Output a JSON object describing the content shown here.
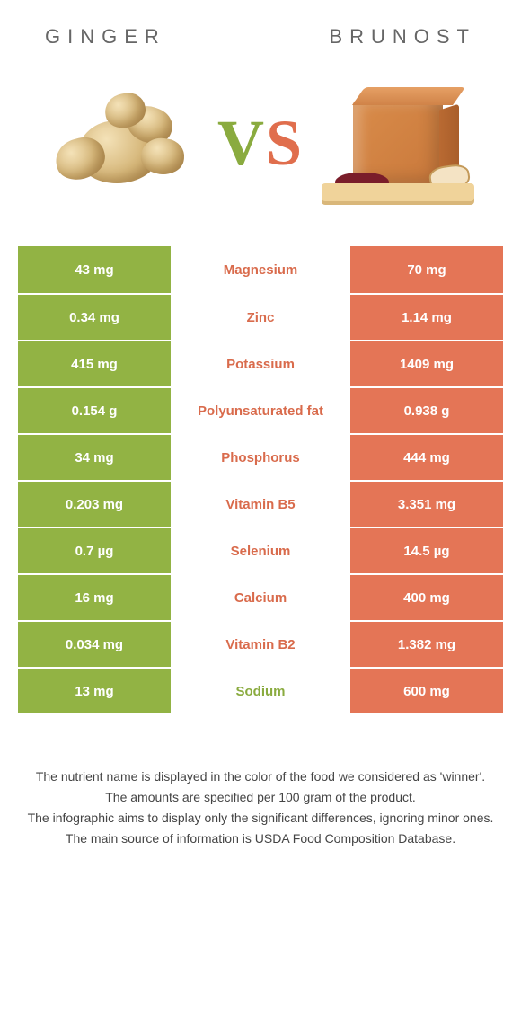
{
  "colors": {
    "left_bg": "#92b344",
    "right_bg": "#e47556",
    "left_text": "#8aab3f",
    "right_text": "#d96b4c",
    "title_text": "#666666",
    "footer_text": "#444444",
    "background": "#ffffff"
  },
  "header": {
    "left_title": "GINGER",
    "right_title": "BRUNOST",
    "vs_v": "V",
    "vs_s": "S"
  },
  "rows": [
    {
      "label": "Magnesium",
      "left": "43 mg",
      "right": "70 mg",
      "winner": "right"
    },
    {
      "label": "Zinc",
      "left": "0.34 mg",
      "right": "1.14 mg",
      "winner": "right"
    },
    {
      "label": "Potassium",
      "left": "415 mg",
      "right": "1409 mg",
      "winner": "right"
    },
    {
      "label": "Polyunsaturated fat",
      "left": "0.154 g",
      "right": "0.938 g",
      "winner": "right"
    },
    {
      "label": "Phosphorus",
      "left": "34 mg",
      "right": "444 mg",
      "winner": "right"
    },
    {
      "label": "Vitamin B5",
      "left": "0.203 mg",
      "right": "3.351 mg",
      "winner": "right"
    },
    {
      "label": "Selenium",
      "left": "0.7 µg",
      "right": "14.5 µg",
      "winner": "right"
    },
    {
      "label": "Calcium",
      "left": "16 mg",
      "right": "400 mg",
      "winner": "right"
    },
    {
      "label": "Vitamin B2",
      "left": "0.034 mg",
      "right": "1.382 mg",
      "winner": "right"
    },
    {
      "label": "Sodium",
      "left": "13 mg",
      "right": "600 mg",
      "winner": "left"
    }
  ],
  "footer": {
    "line1": "The nutrient name is displayed in the color of the food we considered as 'winner'.",
    "line2": "The amounts are specified per 100 gram of the product.",
    "line3": "The infographic aims to display only the significant differences, ignoring minor ones.",
    "line4": "The main source of information is USDA Food Composition Database."
  }
}
